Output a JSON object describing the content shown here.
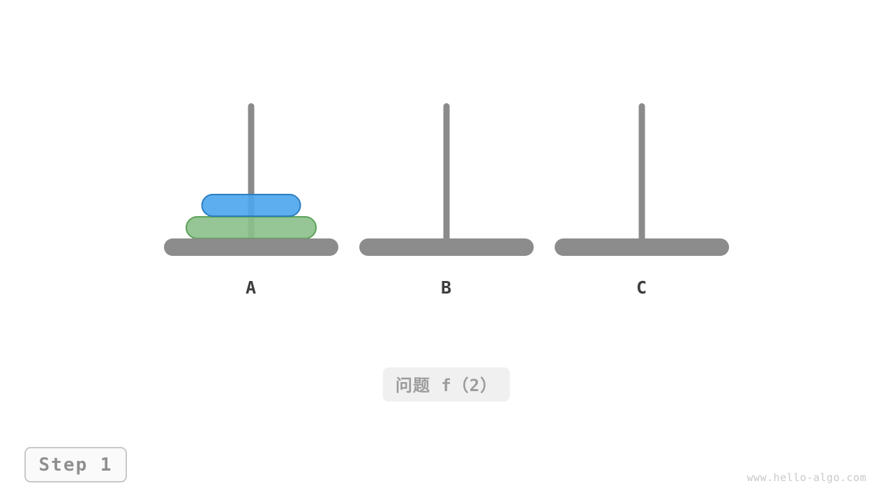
{
  "figure": {
    "title_hint": "tower-of-hanoi-step",
    "towers": [
      {
        "label": "A",
        "disks": [
          {
            "name": "disk-2-green",
            "size": 2,
            "width": 188,
            "fill": "#8bc08a",
            "stroke": "#5ba158"
          },
          {
            "name": "disk-1-blue",
            "size": 1,
            "width": 143,
            "fill": "#4aa5ec",
            "stroke": "#2b7dc0"
          }
        ]
      },
      {
        "label": "B",
        "disks": []
      },
      {
        "label": "C",
        "disks": []
      }
    ],
    "badge": {
      "text": "问题 f（2）"
    },
    "step": {
      "label": "Step 1"
    },
    "watermark": {
      "text": "www.hello-algo.com"
    },
    "colors": {
      "pole": "#8b8b8b",
      "base": "#8c8c8c",
      "label": "#3d3d3d",
      "badge_bg": "#f0f0f0",
      "badge_text": "#9c9c9c",
      "step_bg": "#fafafa",
      "step_border": "#c8c8c8",
      "step_text": "#8f8f8f",
      "watermark": "#c9c9c9"
    }
  }
}
